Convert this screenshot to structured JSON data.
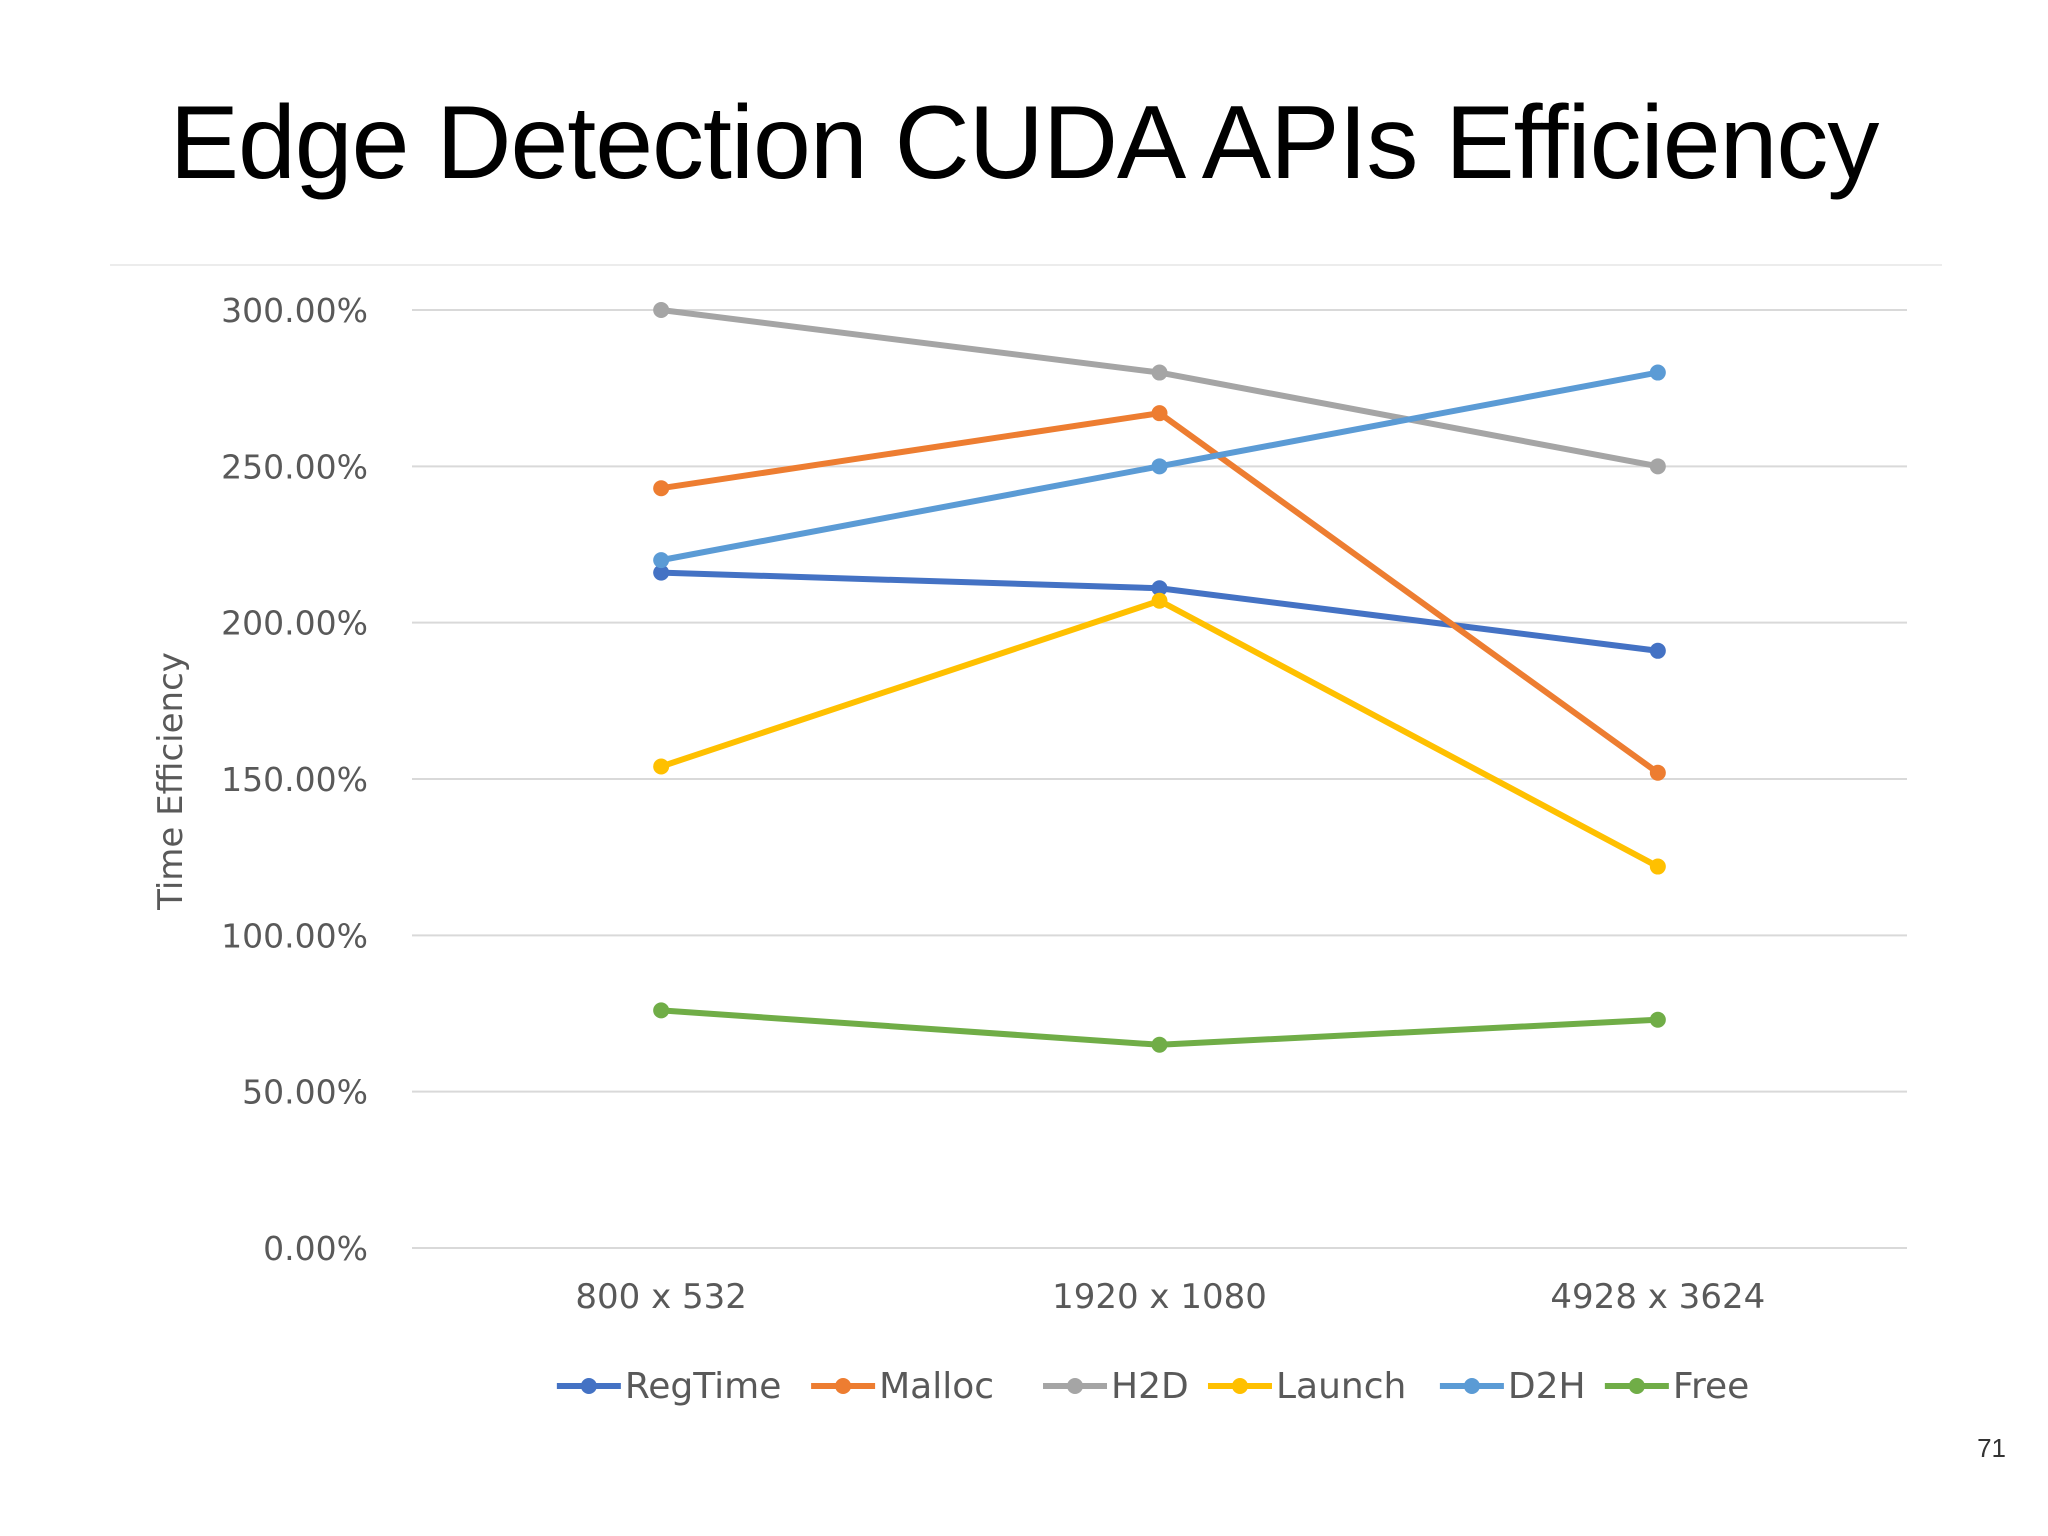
{
  "slide": {
    "title": "Edge Detection CUDA APIs Efficiency",
    "page_number": "71"
  },
  "chart_data": {
    "type": "line",
    "title": "",
    "xlabel": "",
    "ylabel": "Time Efficiency",
    "categories": [
      "800 x 532",
      "1920 x 1080",
      "4928 x 3624"
    ],
    "ylim": [
      0,
      300
    ],
    "yticks": [
      0,
      50,
      100,
      150,
      200,
      250,
      300
    ],
    "ytick_labels": [
      "0.00%",
      "50.00%",
      "100.00%",
      "150.00%",
      "200.00%",
      "250.00%",
      "300.00%"
    ],
    "grid": "horizontal",
    "legend_position": "bottom",
    "series": [
      {
        "name": "RegTime",
        "color": "#4472C4",
        "values": [
          216,
          211,
          191
        ]
      },
      {
        "name": "Malloc",
        "color": "#ED7D31",
        "values": [
          243,
          267,
          152
        ]
      },
      {
        "name": "H2D",
        "color": "#A5A5A5",
        "values": [
          300,
          280,
          250
        ]
      },
      {
        "name": "Launch",
        "color": "#FFC000",
        "values": [
          154,
          207,
          122
        ]
      },
      {
        "name": "D2H",
        "color": "#5B9BD5",
        "values": [
          220,
          250,
          280
        ]
      },
      {
        "name": "Free",
        "color": "#70AD47",
        "values": [
          76,
          65,
          73
        ]
      }
    ]
  }
}
